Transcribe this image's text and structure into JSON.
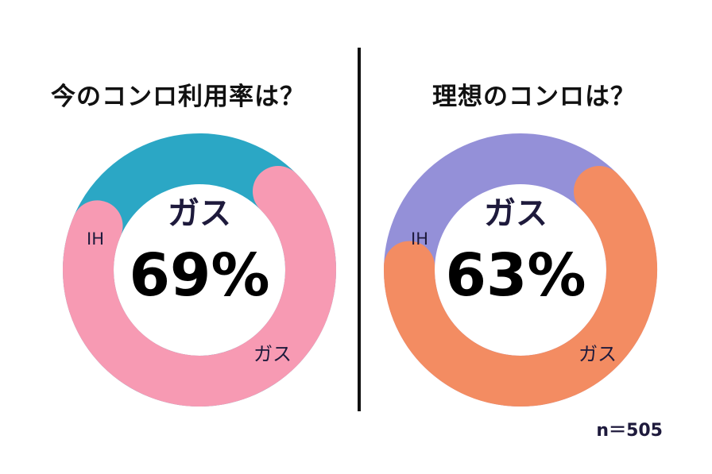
{
  "chart_data": [
    {
      "type": "pie",
      "title": "今のコンロ利用率は？",
      "categories": [
        "ガス",
        "IH"
      ],
      "values": [
        69,
        31
      ],
      "colors": [
        "#f79ab3",
        "#2ba7c5"
      ],
      "center_label": "ガス",
      "center_value": "69%",
      "slice_labels": [
        "ガス",
        "IH"
      ]
    },
    {
      "type": "pie",
      "title": "理想のコンロは？",
      "categories": [
        "ガス",
        "IH"
      ],
      "values": [
        63,
        37
      ],
      "colors": [
        "#f38c62",
        "#9490d8"
      ],
      "center_label": "ガス",
      "center_value": "63%",
      "slice_labels": [
        "ガス",
        "IH"
      ]
    }
  ],
  "footnote": "n＝505"
}
